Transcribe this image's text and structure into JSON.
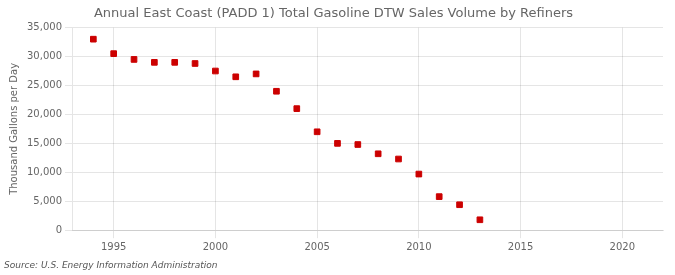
{
  "chart_data": {
    "type": "scatter",
    "title": "Annual East Coast (PADD 1) Total Gasoline DTW Sales Volume by Refiners",
    "ylabel": "Thousand Gallons per Day",
    "source": "Source: U.S. Energy Information Administration",
    "x": [
      1994,
      1995,
      1996,
      1997,
      1998,
      1999,
      2000,
      2001,
      2002,
      2003,
      2004,
      2005,
      2006,
      2007,
      2008,
      2009,
      2010,
      2011,
      2012,
      2013
    ],
    "values": [
      33000,
      30500,
      29500,
      29000,
      29000,
      28800,
      27500,
      26500,
      27000,
      24000,
      21000,
      17000,
      15000,
      14800,
      13200,
      12300,
      9700,
      5800,
      4400,
      1800
    ],
    "color": "#cc0000",
    "marker": "square",
    "xlim": [
      1993,
      2022
    ],
    "xticks": [
      1995,
      2000,
      2005,
      2010,
      2015,
      2020
    ],
    "ylim": [
      0,
      35000
    ],
    "yticks": [
      0,
      {
        "value": 5000,
        "label": "5,000"
      },
      {
        "value": 10000,
        "label": "10,000"
      },
      {
        "value": 15000,
        "label": "15,000"
      },
      {
        "value": 20000,
        "label": "20,000"
      },
      {
        "value": 25000,
        "label": "25,000"
      },
      {
        "value": 30000,
        "label": "30,000"
      },
      {
        "value": 35000,
        "label": "35,000"
      }
    ],
    "grid": true
  }
}
